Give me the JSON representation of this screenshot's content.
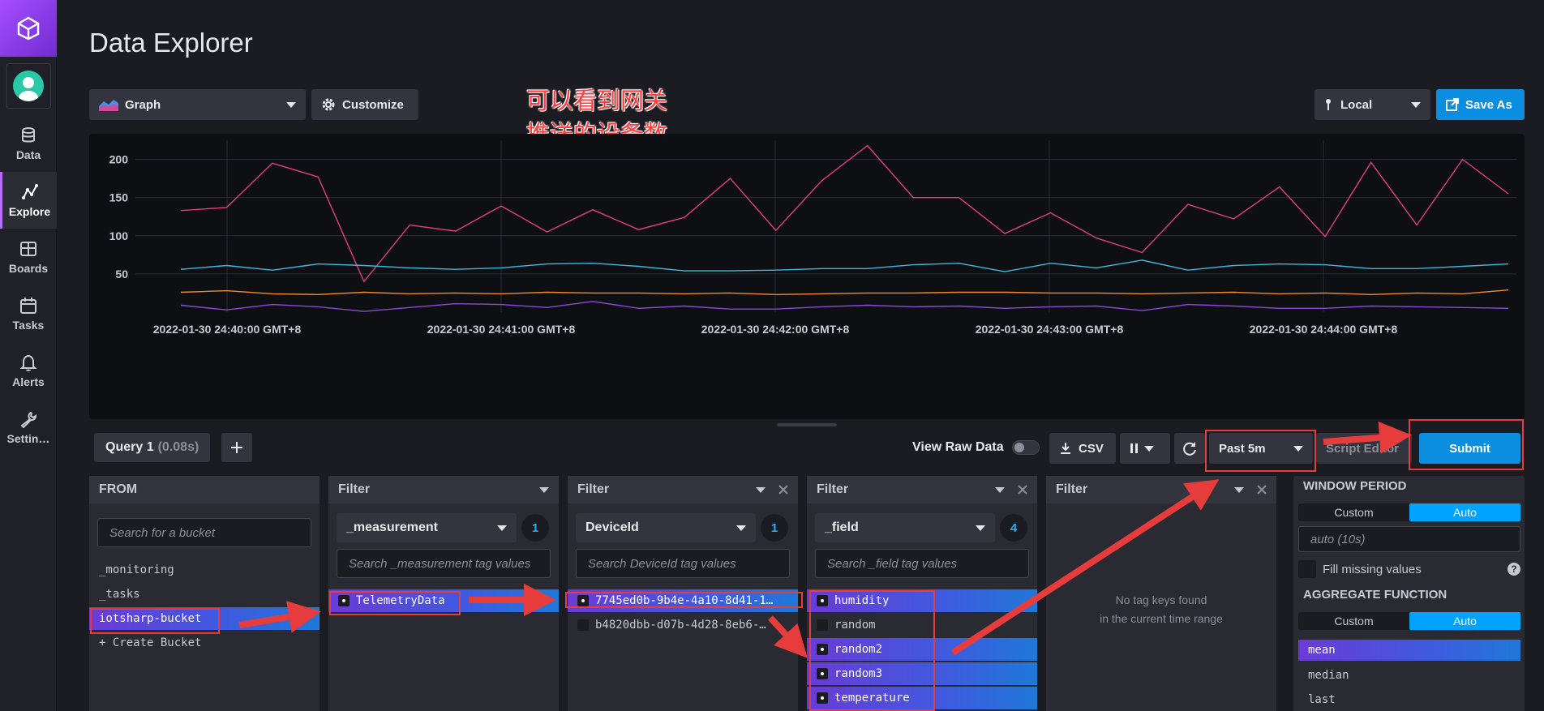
{
  "sidebar": {
    "items": [
      {
        "label": "Data",
        "icon": "database-icon"
      },
      {
        "label": "Explore",
        "icon": "graph-icon"
      },
      {
        "label": "Boards",
        "icon": "dashboard-icon"
      },
      {
        "label": "Tasks",
        "icon": "calendar-icon"
      },
      {
        "label": "Alerts",
        "icon": "bell-icon"
      },
      {
        "label": "Settin…",
        "icon": "wrench-icon"
      }
    ]
  },
  "header": {
    "title": "Data Explorer",
    "view_type": "Graph",
    "customize_label": "Customize",
    "timezone": "Local",
    "save_as_label": "Save As"
  },
  "annotation": {
    "text": "可以看到网关推送的设备数据趋势图"
  },
  "chart_data": {
    "type": "line",
    "y_ticks": [
      "200",
      "150",
      "100",
      "50"
    ],
    "ylim": [
      0,
      225
    ],
    "x_ticks": [
      "2022-01-30 24:40:00 GMT+8",
      "2022-01-30 24:41:00 GMT+8",
      "2022-01-30 24:42:00 GMT+8",
      "2022-01-30 24:43:00 GMT+8",
      "2022-01-30 24:44:00 GMT+8"
    ],
    "series": [
      {
        "color": "#e0407a",
        "values": [
          133,
          137,
          195,
          177,
          40,
          114,
          106,
          139,
          105,
          134,
          108,
          124,
          175,
          107,
          172,
          218,
          150,
          150,
          103,
          130,
          97,
          78,
          141,
          122,
          164,
          99,
          196,
          114,
          200,
          155
        ]
      },
      {
        "color": "#3cb8e0",
        "values": [
          56,
          61,
          55,
          63,
          61,
          58,
          56,
          58,
          63,
          64,
          60,
          54,
          54,
          55,
          57,
          57,
          62,
          64,
          53,
          64,
          58,
          68,
          55,
          61,
          63,
          62,
          57,
          57,
          60,
          63
        ]
      },
      {
        "color": "#ef8a30",
        "values": [
          26,
          28,
          24,
          23,
          26,
          24,
          25,
          24,
          26,
          25,
          25,
          24,
          25,
          23,
          24,
          25,
          25,
          26,
          26,
          25,
          25,
          24,
          25,
          26,
          24,
          25,
          23,
          25,
          24,
          29
        ]
      },
      {
        "color": "#8a4ad8",
        "values": [
          9,
          3,
          10,
          7,
          1,
          6,
          11,
          10,
          6,
          14,
          5,
          8,
          4,
          4,
          7,
          9,
          7,
          8,
          5,
          7,
          8,
          2,
          10,
          8,
          5,
          5,
          8,
          7,
          6,
          5
        ]
      }
    ]
  },
  "query": {
    "tab_label": "Query 1",
    "tab_time": "(0.08s)",
    "view_raw_label": "View Raw Data",
    "csv_label": "CSV",
    "time_range": "Past 5m",
    "script_editor_label": "Script Editor",
    "submit_label": "Submit"
  },
  "from_panel": {
    "title": "FROM",
    "search_placeholder": "Search for a bucket",
    "buckets": [
      "_monitoring",
      "_tasks",
      "iotsharp-bucket",
      "+ Create Bucket"
    ]
  },
  "filter1": {
    "title": "Filter",
    "key": "_measurement",
    "count": "1",
    "search_placeholder": "Search _measurement tag values",
    "values": [
      "TelemetryData"
    ]
  },
  "filter2": {
    "title": "Filter",
    "key": "DeviceId",
    "count": "1",
    "search_placeholder": "Search DeviceId tag values",
    "values": [
      "7745ed0b-9b4e-4a10-8d41-1…",
      "b4820dbb-d07b-4d28-8eb6-…"
    ]
  },
  "filter3": {
    "title": "Filter",
    "key": "_field",
    "count": "4",
    "search_placeholder": "Search _field tag values",
    "values": [
      "humidity",
      "random",
      "random2",
      "random3",
      "temperature"
    ]
  },
  "filter4": {
    "title": "Filter",
    "empty_line1": "No tag keys found",
    "empty_line2": "in the current time range"
  },
  "window": {
    "window_period_title": "WINDOW PERIOD",
    "custom_label": "Custom",
    "auto_label": "Auto",
    "period_placeholder": "auto (10s)",
    "fill_missing_label": "Fill missing values",
    "help_glyph": "?",
    "aggregate_title": "AGGREGATE FUNCTION",
    "functions": [
      "mean",
      "median",
      "last"
    ]
  }
}
